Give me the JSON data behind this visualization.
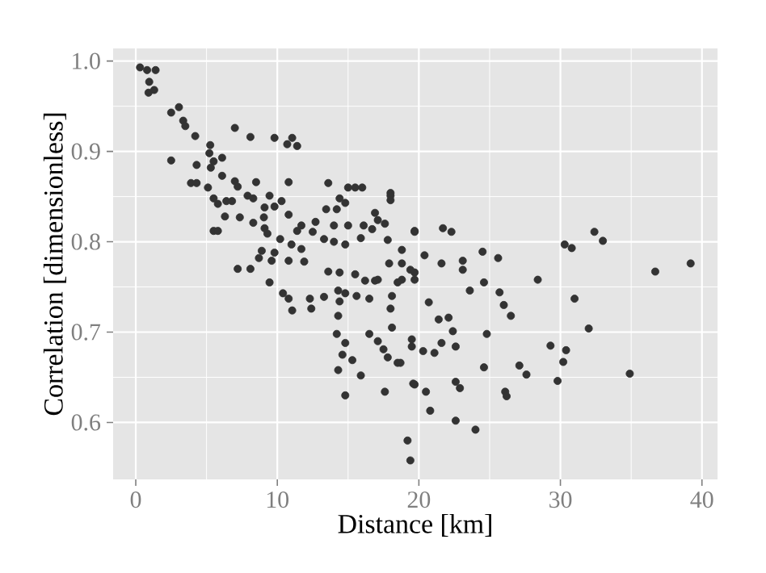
{
  "chart_data": {
    "type": "scatter",
    "xlabel": "Distance [km]",
    "ylabel": "Correlation [dimensionless]",
    "xlim": [
      -1.6,
      41.1
    ],
    "ylim": [
      0.537,
      1.014
    ],
    "xticks": [
      0,
      10,
      20,
      30,
      40
    ],
    "yticks": [
      0.6,
      0.7,
      0.8,
      0.9,
      {
        "value": 1.0,
        "label": "1.0"
      }
    ],
    "grid": true,
    "marker": "circle",
    "series": [
      {
        "color": "#333333",
        "x": [
          0.3,
          0.8,
          1.4,
          0.95,
          0.9,
          1.3,
          2.5,
          3.05,
          3.35,
          3.5,
          4.2,
          7.0,
          8.1,
          9.8,
          10.7,
          11.05,
          11.4,
          2.5,
          5.26,
          5.2,
          5.5,
          6.1,
          4.3,
          5.3,
          6.1,
          3.9,
          4.3,
          7.0,
          7.2,
          7.9,
          8.3,
          8.5,
          5.1,
          5.5,
          5.8,
          6.4,
          6.8,
          9.45,
          9.8,
          9.1,
          9.05,
          10.3,
          6.3,
          7.35,
          8.3,
          9.1,
          10.8,
          5.5,
          5.8,
          10.8,
          13.6,
          15.5,
          16.0,
          15.0,
          18.0,
          18.0,
          14.4,
          14.8,
          14.2,
          16.9,
          17.1,
          13.45,
          12.7,
          11.7,
          11.4,
          12.5,
          14.0,
          15.0,
          16.1,
          16.7,
          17.6,
          19.7,
          10.2,
          9.3,
          11.0,
          11.7,
          13.3,
          14.0,
          14.8,
          15.9,
          17.8,
          8.9,
          9.8,
          8.7,
          9.6,
          10.8,
          11.9,
          7.2,
          8.1,
          13.6,
          14.4,
          17.1,
          18.8,
          19.7,
          9.45,
          10.4,
          10.8,
          11.05,
          12.3,
          12.4,
          13.3,
          14.3,
          14.4,
          14.3,
          14.8,
          15.6,
          16.5,
          15.5,
          16.2,
          16.9,
          18.1,
          18.0,
          18.1,
          14.2,
          14.8,
          16.5,
          17.1,
          17.5,
          17.8,
          14.6,
          15.3,
          14.3,
          15.9,
          14.8,
          17.6,
          18.7,
          19.5,
          19.7,
          19.2,
          19.4,
          18.8,
          17.9,
          18.0,
          19.7,
          21.7,
          22.3,
          18.8,
          20.4,
          21.6,
          23.1,
          23.1,
          24.5,
          25.6,
          19.4,
          19.7,
          18.5,
          24.6,
          23.6,
          25.7,
          26.0,
          26.5,
          28.4,
          20.7,
          21.4,
          22.1,
          22.4,
          24.8,
          19.5,
          21.6,
          22.6,
          20.3,
          21.1,
          18.5,
          24.6,
          27.1,
          27.6,
          29.3,
          30.4,
          30.2,
          29.8,
          32.0,
          31.0,
          30.3,
          30.8,
          32.4,
          33.0,
          36.7,
          39.2,
          34.9,
          19.6,
          20.5,
          22.6,
          22.9,
          26.1,
          26.2,
          20.8,
          22.6,
          24.0
        ],
        "values": [
          0.993,
          0.99,
          0.99,
          0.977,
          0.965,
          0.968,
          0.943,
          0.949,
          0.934,
          0.928,
          0.917,
          0.926,
          0.916,
          0.915,
          0.908,
          0.915,
          0.906,
          0.89,
          0.907,
          0.898,
          0.889,
          0.893,
          0.885,
          0.882,
          0.873,
          0.865,
          0.865,
          0.867,
          0.861,
          0.851,
          0.848,
          0.866,
          0.86,
          0.848,
          0.842,
          0.845,
          0.845,
          0.851,
          0.839,
          0.838,
          0.827,
          0.845,
          0.828,
          0.827,
          0.821,
          0.815,
          0.83,
          0.812,
          0.812,
          0.866,
          0.865,
          0.86,
          0.86,
          0.86,
          0.854,
          0.846,
          0.848,
          0.843,
          0.836,
          0.832,
          0.824,
          0.836,
          0.822,
          0.818,
          0.812,
          0.811,
          0.818,
          0.818,
          0.818,
          0.814,
          0.82,
          0.811,
          0.803,
          0.809,
          0.797,
          0.792,
          0.803,
          0.8,
          0.797,
          0.804,
          0.802,
          0.79,
          0.788,
          0.782,
          0.779,
          0.779,
          0.778,
          0.77,
          0.77,
          0.767,
          0.766,
          0.758,
          0.758,
          0.766,
          0.755,
          0.743,
          0.737,
          0.724,
          0.737,
          0.726,
          0.739,
          0.746,
          0.734,
          0.718,
          0.743,
          0.74,
          0.737,
          0.764,
          0.757,
          0.757,
          0.74,
          0.726,
          0.705,
          0.698,
          0.688,
          0.698,
          0.69,
          0.681,
          0.672,
          0.675,
          0.669,
          0.658,
          0.652,
          0.63,
          0.634,
          0.666,
          0.684,
          0.642,
          0.58,
          0.558,
          0.776,
          0.776,
          0.851,
          0.812,
          0.815,
          0.811,
          0.791,
          0.785,
          0.776,
          0.779,
          0.769,
          0.789,
          0.782,
          0.769,
          0.758,
          0.755,
          0.755,
          0.746,
          0.744,
          0.73,
          0.718,
          0.758,
          0.733,
          0.714,
          0.716,
          0.701,
          0.698,
          0.692,
          0.688,
          0.684,
          0.679,
          0.677,
          0.666,
          0.661,
          0.663,
          0.653,
          0.685,
          0.68,
          0.667,
          0.646,
          0.704,
          0.737,
          0.797,
          0.793,
          0.811,
          0.801,
          0.767,
          0.776,
          0.654,
          0.643,
          0.634,
          0.645,
          0.638,
          0.634,
          0.629,
          0.613,
          0.602,
          0.592
        ]
      }
    ]
  }
}
